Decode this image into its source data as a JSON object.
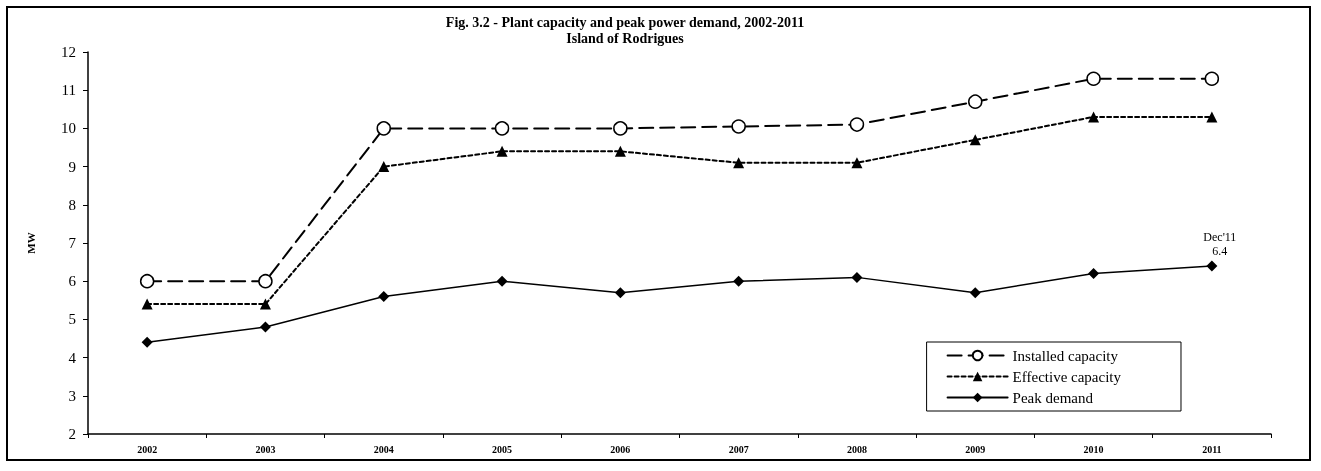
{
  "chart_data": {
    "type": "line",
    "title": "Fig. 3.2 - Plant capacity and peak power demand, 2002-2011",
    "subtitle": "Island of Rodrigues",
    "ylabel": "MW",
    "categories": [
      "2002",
      "2003",
      "2004",
      "2005",
      "2006",
      "2007",
      "2008",
      "2009",
      "2010",
      "2011"
    ],
    "series": [
      {
        "name": "Installed capacity",
        "color": "#000000",
        "marker": "circle",
        "line_style": "dashed",
        "values": [
          6.0,
          6.0,
          10.0,
          10.0,
          10.0,
          10.05,
          10.1,
          10.7,
          11.3,
          11.3
        ]
      },
      {
        "name": "Effective capacity",
        "color": "#000000",
        "marker": "triangle",
        "line_style": "dotted",
        "values": [
          5.4,
          5.4,
          9.0,
          9.4,
          9.4,
          9.1,
          9.1,
          9.7,
          10.3,
          10.3
        ]
      },
      {
        "name": "Peak demand",
        "color": "#000000",
        "marker": "diamond",
        "line_style": "solid",
        "values": [
          4.4,
          4.8,
          5.6,
          6.0,
          5.7,
          6.0,
          6.1,
          5.7,
          6.2,
          6.4
        ]
      }
    ],
    "ylim": [
      2,
      12
    ],
    "yticks": [
      2,
      3,
      4,
      5,
      6,
      7,
      8,
      9,
      10,
      11,
      12
    ],
    "grid": false,
    "legend": "bottom right",
    "annotations": [
      {
        "text": "Dec'11\n6.4",
        "x": "2011",
        "y": 6.4
      }
    ]
  }
}
